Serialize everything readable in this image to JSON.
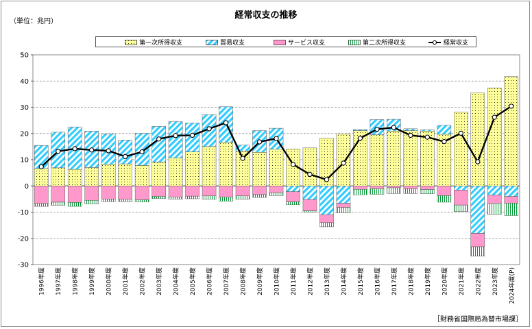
{
  "title": "経常収支の推移",
  "unit": "（単位：兆円）",
  "source": "［財務省国際局為替市場課］",
  "legend": [
    {
      "key": "primary",
      "label": "第一次所得収支"
    },
    {
      "key": "trade",
      "label": "貿易収支"
    },
    {
      "key": "services",
      "label": "サービス収支"
    },
    {
      "key": "secondary",
      "label": "第二次所得収支"
    },
    {
      "key": "current",
      "label": "経常収支"
    }
  ],
  "colors": {
    "primary": "#ffff99",
    "trade": "#33ccff",
    "services": "#ff99cc",
    "secondary": "#99ff99",
    "current": "#000000"
  },
  "chart_data": {
    "type": "bar",
    "title": "経常収支の推移",
    "ylim": [
      -30,
      50
    ],
    "yticks": [
      -30,
      -20,
      -10,
      0,
      10,
      20,
      30,
      40,
      50
    ],
    "grid": true,
    "legend_position": "top",
    "categories": [
      "1996年度",
      "1997年度",
      "1998年度",
      "1999年度",
      "2000年度",
      "2001年度",
      "2002年度",
      "2003年度",
      "2004年度",
      "2005年度",
      "2006年度",
      "2007年度",
      "2008年度",
      "2009年度",
      "2010年度",
      "2011年度",
      "2012年度",
      "2013年度",
      "2014年度",
      "2015年度",
      "2016年度",
      "2017年度",
      "2018年度",
      "2019年度",
      "2020年度",
      "2021年度",
      "2022年度",
      "2023年度",
      "2024年度(P)"
    ],
    "series": [
      {
        "name": "第一次所得収支",
        "type": "bar",
        "values": [
          6.6,
          6.9,
          6.3,
          7.0,
          8.3,
          8.4,
          7.8,
          9.1,
          10.7,
          13.0,
          15.0,
          16.6,
          13.3,
          12.8,
          14.0,
          14.1,
          14.5,
          18.2,
          19.8,
          21.1,
          19.5,
          20.9,
          21.1,
          20.9,
          19.7,
          28.2,
          35.5,
          37.4,
          41.7
        ]
      },
      {
        "name": "貿易収支",
        "type": "bar",
        "values": [
          8.8,
          13.6,
          16.2,
          13.9,
          11.5,
          9.1,
          12.3,
          13.6,
          13.8,
          11.0,
          12.2,
          13.6,
          2.3,
          8.3,
          8.0,
          -2.2,
          -5.2,
          -11.0,
          -6.6,
          0.4,
          5.8,
          4.5,
          0.7,
          0.5,
          3.4,
          -1.6,
          -18.1,
          -3.5,
          -4.0
        ]
      },
      {
        "name": "サービス収支",
        "type": "bar",
        "values": [
          -6.7,
          -6.2,
          -6.3,
          -5.5,
          -5.0,
          -5.1,
          -5.3,
          -4.0,
          -4.2,
          -3.9,
          -3.8,
          -4.3,
          -3.8,
          -3.3,
          -2.6,
          -3.9,
          -4.3,
          -3.0,
          -1.6,
          -1.3,
          -1.1,
          -0.7,
          -1.1,
          -1.4,
          -3.7,
          -5.7,
          -5.1,
          -3.2,
          -2.6
        ]
      },
      {
        "name": "第二次所得収支",
        "type": "bar",
        "values": [
          -1.1,
          -1.2,
          -1.5,
          -1.4,
          -1.0,
          -0.9,
          -0.8,
          -0.8,
          -0.9,
          -1.0,
          -1.3,
          -1.5,
          -1.3,
          -1.1,
          -1.1,
          -1.1,
          -0.5,
          -1.6,
          -2.1,
          -2.1,
          -2.1,
          -2.2,
          -1.8,
          -1.6,
          -2.5,
          -2.5,
          -3.6,
          -4.2,
          -4.7
        ]
      },
      {
        "name": "経常収支",
        "type": "line",
        "values": [
          7.3,
          13.2,
          14.2,
          13.7,
          13.4,
          11.2,
          13.0,
          17.9,
          19.2,
          19.3,
          21.8,
          24.1,
          10.5,
          16.8,
          18.1,
          8.2,
          4.4,
          2.4,
          8.7,
          18.2,
          21.6,
          22.3,
          19.3,
          18.6,
          16.9,
          20.1,
          9.2,
          26.2,
          30.4
        ]
      }
    ]
  }
}
